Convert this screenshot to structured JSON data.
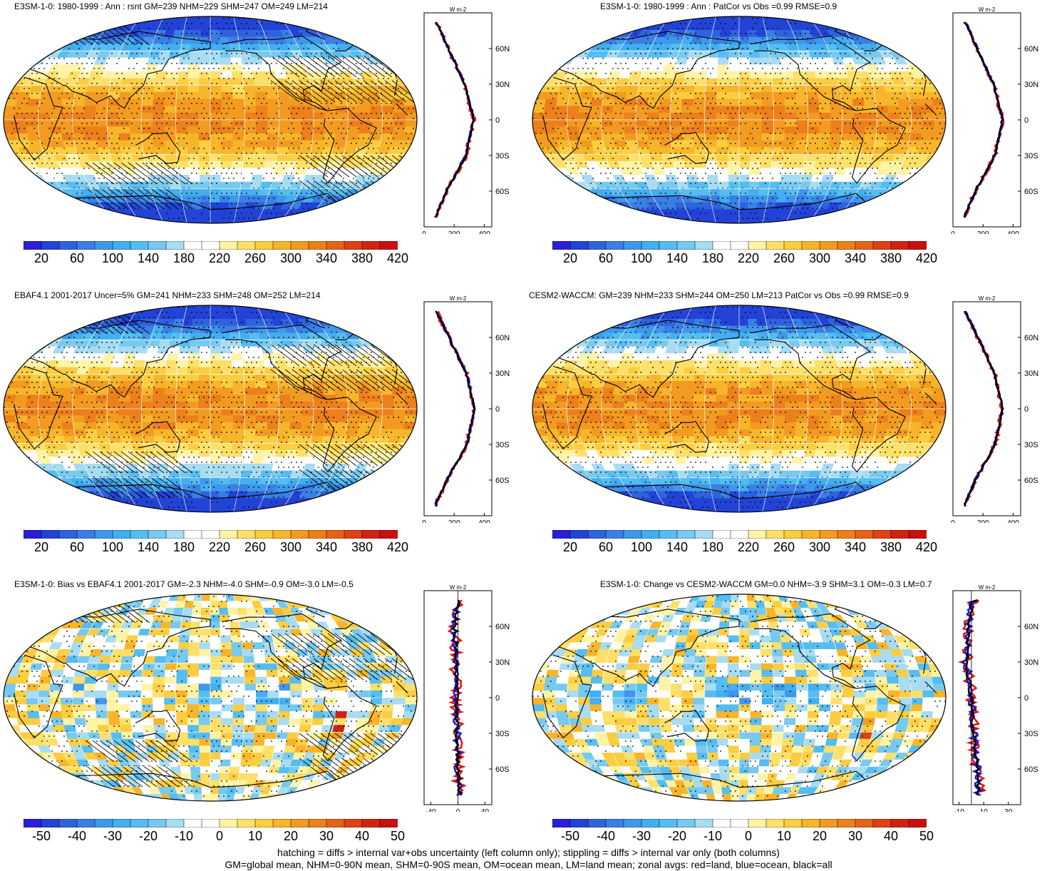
{
  "panels": [
    {
      "id": "model",
      "title": "E3SM-1-0: 1980-1999 : Ann : rsnt GM=239 NHM=229 SHM=247 OM=249 LM=214",
      "field": "absolute",
      "hatching": true,
      "colorbar": {
        "labels": [
          "20",
          "60",
          "100",
          "140",
          "180",
          "220",
          "260",
          "300",
          "340",
          "380",
          "420"
        ]
      },
      "zonal": {
        "unit": "W m-2",
        "xticks": [
          "0",
          "200",
          "400"
        ],
        "xlim": [
          0,
          450
        ],
        "yticks": [
          "60N",
          "30N",
          "0",
          "30S",
          "60S"
        ]
      }
    },
    {
      "id": "model-patcor",
      "title": "E3SM-1-0: 1980-1999 : Ann : PatCor vs Obs =0.99 RMSE=0.9",
      "field": "absolute",
      "hatching": false,
      "colorbar": {
        "labels": [
          "20",
          "60",
          "100",
          "140",
          "180",
          "220",
          "260",
          "300",
          "340",
          "380",
          "420"
        ]
      },
      "zonal": {
        "unit": "W m-2",
        "xticks": [
          "0",
          "200",
          "400"
        ],
        "xlim": [
          0,
          450
        ],
        "yticks": [
          "60N",
          "30N",
          "0",
          "30S",
          "60S"
        ]
      }
    },
    {
      "id": "obs",
      "title": "EBAF4.1 2001-2017 Uncer=5% GM=241 NHM=233 SHM=248 OM=252 LM=214",
      "field": "absolute",
      "hatching": true,
      "colorbar": {
        "labels": [
          "20",
          "60",
          "100",
          "140",
          "180",
          "220",
          "260",
          "300",
          "340",
          "380",
          "420"
        ]
      },
      "zonal": {
        "unit": "W m-2",
        "xticks": [
          "0",
          "200",
          "400"
        ],
        "xlim": [
          0,
          450
        ],
        "yticks": [
          "60N",
          "30N",
          "0",
          "30S",
          "60S"
        ]
      }
    },
    {
      "id": "cesm",
      "title": "CESM2-WACCM: GM=239 NHM=233 SHM=244 OM=250 LM=213 PatCor vs Obs =0.99 RMSE=0.9",
      "field": "absolute",
      "hatching": false,
      "colorbar": {
        "labels": [
          "20",
          "60",
          "100",
          "140",
          "180",
          "220",
          "260",
          "300",
          "340",
          "380",
          "420"
        ]
      },
      "zonal": {
        "unit": "W m-2",
        "xticks": [
          "0",
          "200",
          "400"
        ],
        "xlim": [
          0,
          450
        ],
        "yticks": [
          "60N",
          "30N",
          "0",
          "30S",
          "60S"
        ]
      }
    },
    {
      "id": "bias",
      "title": "E3SM-1-0: Bias vs EBAF4.1 2001-2017 GM=-2.3 NHM=-4.0 SHM=-0.9 OM=-3.0 LM=-0.5",
      "field": "diff",
      "hatching": true,
      "colorbar": {
        "labels": [
          "-50",
          "-40",
          "-30",
          "-20",
          "-10",
          "0",
          "10",
          "20",
          "30",
          "40",
          "50"
        ]
      },
      "zonal": {
        "unit": "W m-2",
        "xticks": [
          "-40",
          "0",
          "40"
        ],
        "xlim": [
          -50,
          50
        ],
        "yticks": [
          "60N",
          "30N",
          "0",
          "30S",
          "60S"
        ]
      }
    },
    {
      "id": "change",
      "title": "E3SM-1-0: Change vs CESM2-WACCM GM=0.0 NHM=-3.9 SHM=3.1 OM=-0.3 LM=0.7",
      "field": "diff",
      "hatching": false,
      "colorbar": {
        "labels": [
          "-50",
          "-40",
          "-30",
          "-20",
          "-10",
          "0",
          "10",
          "20",
          "30",
          "40",
          "50"
        ]
      },
      "zonal": {
        "unit": "W m-2",
        "xticks": [
          "-10",
          "10",
          "30"
        ],
        "xlim": [
          -15,
          40
        ],
        "yticks": [
          "60N",
          "30N",
          "0",
          "30S",
          "60S"
        ]
      }
    }
  ],
  "palettes": {
    "absolute": [
      "#2a1fd8",
      "#2243d6",
      "#2f62dd",
      "#3a7fe4",
      "#3f98ea",
      "#43aef0",
      "#55bdf2",
      "#77c9ef",
      "#a7dcf2",
      "#ffffff",
      "#ffffff",
      "#fff3a6",
      "#fde06a",
      "#fbcd40",
      "#f7b52b",
      "#f29b20",
      "#ec801b",
      "#e56318",
      "#dd4114",
      "#d42212",
      "#c81010"
    ],
    "diff": [
      "#2a1fd8",
      "#2243d6",
      "#2f62dd",
      "#3a7fe4",
      "#3f98ea",
      "#43aef0",
      "#55bdf2",
      "#77c9ef",
      "#a7dcf2",
      "#ffffff",
      "#ffffff",
      "#fff3a6",
      "#fde06a",
      "#fbcd40",
      "#f7b52b",
      "#f29b20",
      "#ec801b",
      "#e56318",
      "#dd4114",
      "#d42212",
      "#c81010"
    ]
  },
  "zonal_colors": {
    "land": "#e0140e",
    "ocean": "#1a14e0",
    "all": "#000000"
  },
  "footer": {
    "line1": "hatching = diffs > internal var+obs uncertainty (left column only); stippling = diffs > internal var only (both columns)",
    "line2": "GM=global mean, NHM=0-90N mean, SHM=0-90S mean, OM=ocean mean, LM=land mean; zonal avgs: red=land, blue=ocean, black=all"
  },
  "chart_data": [
    {
      "type": "heatmap",
      "title": "E3SM-1-0: 1980-1999 : Ann : rsnt GM=239 NHM=229 SHM=247 OM=249 LM=214",
      "lat": [
        80,
        60,
        30,
        0,
        -30,
        -60,
        -80
      ],
      "zonal_mean_all": [
        90,
        160,
        270,
        330,
        280,
        150,
        80
      ],
      "colorbar_range": [
        20,
        420
      ]
    },
    {
      "type": "heatmap",
      "title": "E3SM-1-0: 1980-1999 : Ann : PatCor vs Obs =0.99 RMSE=0.9",
      "lat": [
        80,
        60,
        30,
        0,
        -30,
        -60,
        -80
      ],
      "zonal_mean_all": [
        90,
        160,
        270,
        330,
        280,
        150,
        80
      ],
      "colorbar_range": [
        20,
        420
      ]
    },
    {
      "type": "heatmap",
      "title": "EBAF4.1 2001-2017 Uncer=5% GM=241 NHM=233 SHM=248 OM=252 LM=214",
      "lat": [
        80,
        60,
        30,
        0,
        -30,
        -60,
        -80
      ],
      "zonal_mean_all": [
        90,
        165,
        280,
        335,
        285,
        150,
        80
      ],
      "colorbar_range": [
        20,
        420
      ]
    },
    {
      "type": "heatmap",
      "title": "CESM2-WACCM: GM=239 NHM=233 SHM=244 OM=250 LM=213 PatCor vs Obs =0.99 RMSE=0.9",
      "lat": [
        80,
        60,
        30,
        0,
        -30,
        -60,
        -80
      ],
      "zonal_mean_all": [
        90,
        165,
        275,
        330,
        280,
        150,
        80
      ],
      "colorbar_range": [
        20,
        420
      ]
    },
    {
      "type": "heatmap",
      "title": "E3SM-1-0: Bias vs EBAF4.1 2001-2017 GM=-2.3 NHM=-4.0 SHM=-0.9 OM=-3.0 LM=-0.5",
      "lat": [
        80,
        60,
        30,
        0,
        -30,
        -60,
        -80
      ],
      "zonal_mean_all": [
        0,
        -5,
        -3,
        -2,
        -1,
        0,
        3
      ],
      "colorbar_range": [
        -50,
        50
      ]
    },
    {
      "type": "heatmap",
      "title": "E3SM-1-0: Change vs CESM2-WACCM GM=0.0 NHM=-3.9 SHM=3.1 OM=-0.3 LM=0.7",
      "lat": [
        80,
        60,
        30,
        0,
        -30,
        -60,
        -80
      ],
      "zonal_mean_all": [
        0,
        -2,
        -4,
        0,
        2,
        5,
        6
      ],
      "colorbar_range": [
        -50,
        50
      ]
    }
  ]
}
